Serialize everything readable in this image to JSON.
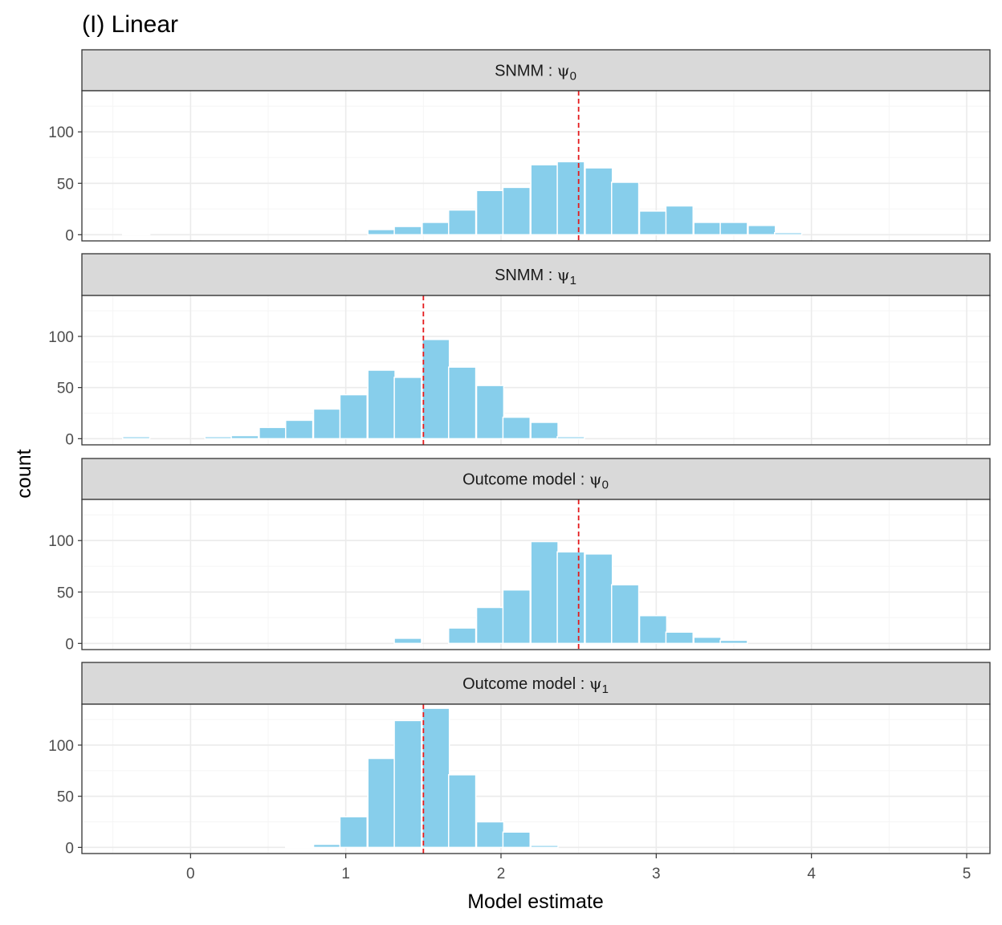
{
  "chart_data": {
    "type": "bar",
    "title": "(I) Linear",
    "xlabel": "Model estimate",
    "ylabel": "count",
    "xlim": [
      -0.7,
      5.15
    ],
    "ylim": [
      -6,
      140
    ],
    "x_ticks": [
      0,
      1,
      2,
      3,
      4,
      5
    ],
    "y_ticks": [
      0,
      50,
      100
    ],
    "bin_width": 0.175,
    "grid": true,
    "colors": {
      "bar_fill": "#87CEEB",
      "bar_stroke": "#ffffff",
      "reference_line": "#e41a1c",
      "strip_fill": "#d9d9d9",
      "grid_major": "#ebebeb",
      "grid_minor": "#f5f5f5",
      "panel_border": "#333333"
    },
    "panels": [
      {
        "strip_prefix": "SNMM",
        "strip_symbol": "ψ",
        "strip_subscript": "0",
        "reference_x": 2.5,
        "bins": [
          {
            "x": -0.35,
            "count": 1
          },
          {
            "x": 1.23,
            "count": 5
          },
          {
            "x": 1.4,
            "count": 8
          },
          {
            "x": 1.58,
            "count": 12
          },
          {
            "x": 1.75,
            "count": 24
          },
          {
            "x": 1.93,
            "count": 43
          },
          {
            "x": 2.1,
            "count": 46
          },
          {
            "x": 2.28,
            "count": 68
          },
          {
            "x": 2.45,
            "count": 71
          },
          {
            "x": 2.63,
            "count": 65
          },
          {
            "x": 2.8,
            "count": 51
          },
          {
            "x": 2.98,
            "count": 23
          },
          {
            "x": 3.15,
            "count": 28
          },
          {
            "x": 3.33,
            "count": 12
          },
          {
            "x": 3.5,
            "count": 12
          },
          {
            "x": 3.68,
            "count": 9
          },
          {
            "x": 3.85,
            "count": 2
          }
        ]
      },
      {
        "strip_prefix": "SNMM",
        "strip_symbol": "ψ",
        "strip_subscript": "1",
        "reference_x": 1.5,
        "bins": [
          {
            "x": -0.35,
            "count": 2
          },
          {
            "x": 0.18,
            "count": 2
          },
          {
            "x": 0.35,
            "count": 3
          },
          {
            "x": 0.53,
            "count": 11
          },
          {
            "x": 0.7,
            "count": 18
          },
          {
            "x": 0.88,
            "count": 29
          },
          {
            "x": 1.05,
            "count": 43
          },
          {
            "x": 1.23,
            "count": 67
          },
          {
            "x": 1.4,
            "count": 60
          },
          {
            "x": 1.58,
            "count": 97
          },
          {
            "x": 1.75,
            "count": 70
          },
          {
            "x": 1.93,
            "count": 52
          },
          {
            "x": 2.1,
            "count": 21
          },
          {
            "x": 2.28,
            "count": 16
          },
          {
            "x": 2.45,
            "count": 2
          }
        ]
      },
      {
        "strip_prefix": "Outcome model",
        "strip_symbol": "ψ",
        "strip_subscript": "0",
        "reference_x": 2.5,
        "bins": [
          {
            "x": 1.4,
            "count": 5
          },
          {
            "x": 1.75,
            "count": 15
          },
          {
            "x": 1.93,
            "count": 35
          },
          {
            "x": 2.1,
            "count": 52
          },
          {
            "x": 2.28,
            "count": 99
          },
          {
            "x": 2.45,
            "count": 89
          },
          {
            "x": 2.63,
            "count": 87
          },
          {
            "x": 2.8,
            "count": 57
          },
          {
            "x": 2.98,
            "count": 27
          },
          {
            "x": 3.15,
            "count": 11
          },
          {
            "x": 3.33,
            "count": 6
          },
          {
            "x": 3.5,
            "count": 3
          }
        ]
      },
      {
        "strip_prefix": "Outcome model",
        "strip_symbol": "ψ",
        "strip_subscript": "1",
        "reference_x": 1.5,
        "bins": [
          {
            "x": 0.7,
            "count": 1
          },
          {
            "x": 0.88,
            "count": 3
          },
          {
            "x": 1.05,
            "count": 30
          },
          {
            "x": 1.23,
            "count": 87
          },
          {
            "x": 1.4,
            "count": 124
          },
          {
            "x": 1.58,
            "count": 136
          },
          {
            "x": 1.75,
            "count": 71
          },
          {
            "x": 1.93,
            "count": 25
          },
          {
            "x": 2.1,
            "count": 15
          },
          {
            "x": 2.28,
            "count": 2
          }
        ]
      }
    ]
  }
}
